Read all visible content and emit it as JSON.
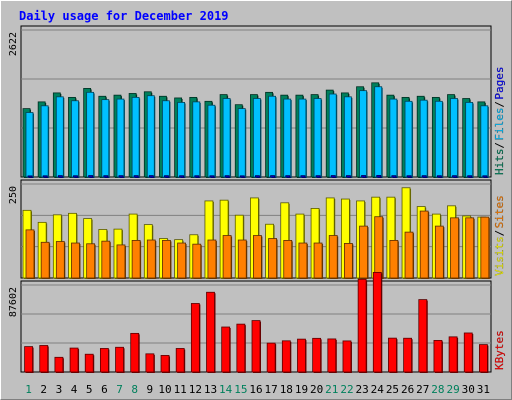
{
  "chart_data": {
    "type": "bar",
    "title": "Daily usage for December 2019",
    "categories": [
      "1",
      "2",
      "3",
      "4",
      "5",
      "6",
      "7",
      "8",
      "9",
      "10",
      "11",
      "12",
      "13",
      "14",
      "15",
      "16",
      "17",
      "18",
      "19",
      "20",
      "21",
      "22",
      "23",
      "24",
      "25",
      "26",
      "27",
      "28",
      "29",
      "30",
      "31"
    ],
    "weekend_days": [
      "1",
      "7",
      "8",
      "14",
      "15",
      "21",
      "22",
      "28",
      "29"
    ],
    "panels": [
      {
        "id": "hits-files-pages",
        "ymax": 2622,
        "ymax_label": "2622",
        "series": [
          {
            "name": "Hits",
            "color": "#00805c",
            "values": [
              1220,
              1340,
              1500,
              1420,
              1580,
              1440,
              1460,
              1490,
              1520,
              1440,
              1410,
              1420,
              1350,
              1470,
              1290,
              1470,
              1510,
              1460,
              1460,
              1470,
              1550,
              1500,
              1610,
              1680,
              1460,
              1420,
              1440,
              1420,
              1470,
              1400,
              1340
            ]
          },
          {
            "name": "Files",
            "color": "#00c0ff",
            "values": [
              1150,
              1270,
              1430,
              1360,
              1510,
              1380,
              1390,
              1420,
              1450,
              1360,
              1330,
              1340,
              1280,
              1400,
              1220,
              1400,
              1440,
              1390,
              1390,
              1400,
              1480,
              1430,
              1540,
              1610,
              1390,
              1350,
              1370,
              1350,
              1400,
              1330,
              1270
            ]
          },
          {
            "name": "Pages",
            "color": "#0000ff",
            "values": [
              20,
              22,
              25,
              23,
              26,
              24,
              24,
              25,
              25,
              24,
              23,
              23,
              22,
              24,
              21,
              24,
              25,
              24,
              24,
              24,
              26,
              25,
              27,
              28,
              24,
              23,
              24,
              23,
              24,
              23,
              22
            ]
          }
        ]
      },
      {
        "id": "visits-sites",
        "ymax": 250,
        "ymax_label": "250",
        "series": [
          {
            "name": "Visits",
            "color": "#ffff00",
            "values": [
              180,
              148,
              168,
              172,
              158,
              129,
              130,
              170,
              142,
              105,
              102,
              115,
              205,
              207,
              167,
              213,
              143,
              200,
              170,
              185,
              213,
              210,
              205,
              215,
              215,
              240,
              190,
              170,
              192,
              165,
              162
            ]
          },
          {
            "name": "Sites",
            "color": "#ff8000",
            "values": [
              128,
              95,
              97,
              93,
              91,
              98,
              88,
              100,
              101,
              100,
              93,
              90,
              101,
              113,
              101,
              113,
              105,
              100,
              93,
              93,
              113,
              92,
              138,
              163,
              100,
              122,
              178,
              138,
              160,
              160,
              162
            ]
          }
        ]
      },
      {
        "id": "kbytes",
        "ymax": 87602,
        "ymax_label": "87602",
        "series": [
          {
            "name": "KBytes",
            "color": "#ff0000",
            "values": [
              25600,
              26700,
              14800,
              24100,
              17900,
              23700,
              24900,
              38900,
              18300,
              16700,
              23700,
              69000,
              80300,
              45300,
              48200,
              51800,
              29100,
              31400,
              33100,
              33900,
              33300,
              31300,
              93400,
              100300,
              34100,
              34000,
              72900,
              31800,
              35400,
              39300,
              27600
            ]
          }
        ]
      }
    ]
  }
}
